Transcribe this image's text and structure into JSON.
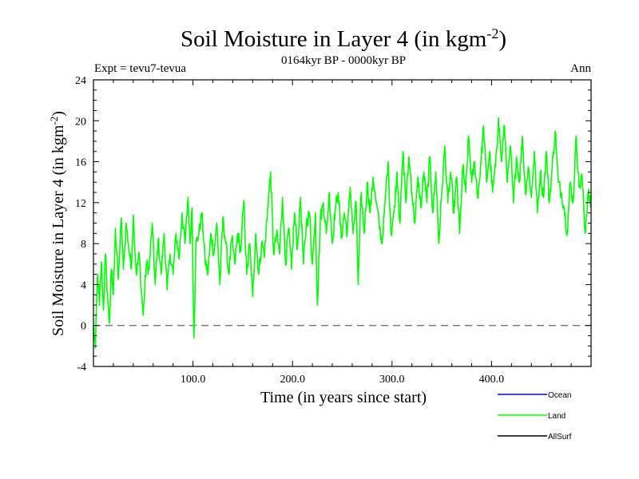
{
  "chart_data": {
    "type": "line",
    "title": "Soil Moisture in Layer 4 (in kgm",
    "title_sup": "-2",
    "title_end": ")",
    "subtitle": "0164kyr BP - 0000kyr BP",
    "expt_label": "Expt = tevu7-tevua",
    "season_label": "Ann",
    "xlabel": "Time (in years since start)",
    "ylabel": "Soil Moisture in Layer 4 (in kgm",
    "ylabel_sup": "-2",
    "ylabel_end": ")",
    "xlim": [
      0,
      500
    ],
    "ylim": [
      -4,
      24
    ],
    "x_ticks": [
      100,
      200,
      300,
      400
    ],
    "x_tick_labels": [
      "100.0",
      "200.0",
      "300.0",
      "400.0"
    ],
    "y_ticks": [
      -4,
      0,
      4,
      8,
      12,
      16,
      20,
      24
    ],
    "y_tick_labels": [
      "-4",
      "0",
      "4",
      "8",
      "12",
      "16",
      "20",
      "24"
    ],
    "zero_line": 0,
    "legend": [
      {
        "name": "Ocean",
        "color": "#0000ff"
      },
      {
        "name": "Land",
        "color": "#00ff00"
      },
      {
        "name": "AllSurf",
        "color": "#000000"
      }
    ],
    "series": [
      {
        "name": "Land",
        "color": "#00ff00",
        "anchors": [
          [
            0,
            0
          ],
          [
            2,
            -2.2
          ],
          [
            4,
            5
          ],
          [
            6,
            2
          ],
          [
            8,
            6.2
          ],
          [
            10,
            1.5
          ],
          [
            12,
            7
          ],
          [
            14,
            3
          ],
          [
            16,
            0.2
          ],
          [
            18,
            5.5
          ],
          [
            20,
            3
          ],
          [
            22,
            9.5
          ],
          [
            25,
            4.5
          ],
          [
            28,
            10.5
          ],
          [
            30,
            5.5
          ],
          [
            33,
            10
          ],
          [
            35,
            8
          ],
          [
            38,
            5.5
          ],
          [
            40,
            10.8
          ],
          [
            43,
            5
          ],
          [
            46,
            7
          ],
          [
            48,
            3.5
          ],
          [
            50,
            1
          ],
          [
            53,
            6
          ],
          [
            56,
            5.5
          ],
          [
            59,
            10
          ],
          [
            62,
            4
          ],
          [
            65,
            8.5
          ],
          [
            68,
            5
          ],
          [
            71,
            9
          ],
          [
            74,
            3.5
          ],
          [
            77,
            7
          ],
          [
            80,
            5
          ],
          [
            83,
            9
          ],
          [
            86,
            6.5
          ],
          [
            89,
            11
          ],
          [
            92,
            8
          ],
          [
            95,
            12.5
          ],
          [
            97,
            8
          ],
          [
            99,
            11.5
          ],
          [
            101,
            -1.2
          ],
          [
            103,
            8
          ],
          [
            106,
            9
          ],
          [
            109,
            11
          ],
          [
            112,
            6.5
          ],
          [
            115,
            5
          ],
          [
            118,
            9
          ],
          [
            121,
            7
          ],
          [
            124,
            10
          ],
          [
            127,
            4
          ],
          [
            130,
            10.5
          ],
          [
            133,
            8
          ],
          [
            136,
            5
          ],
          [
            139,
            8.5
          ],
          [
            142,
            6
          ],
          [
            145,
            9
          ],
          [
            148,
            7.2
          ],
          [
            151,
            12.2
          ],
          [
            154,
            5
          ],
          [
            157,
            8
          ],
          [
            160,
            2.8
          ],
          [
            163,
            9
          ],
          [
            166,
            5
          ],
          [
            169,
            8
          ],
          [
            172,
            7
          ],
          [
            175,
            11.5
          ],
          [
            178,
            15
          ],
          [
            181,
            7
          ],
          [
            184,
            9
          ],
          [
            187,
            7
          ],
          [
            190,
            12.5
          ],
          [
            193,
            6
          ],
          [
            196,
            9.5
          ],
          [
            199,
            5.5
          ],
          [
            202,
            11
          ],
          [
            205,
            7.5
          ],
          [
            208,
            12.5
          ],
          [
            211,
            6
          ],
          [
            214,
            10
          ],
          [
            217,
            11
          ],
          [
            220,
            6
          ],
          [
            223,
            11
          ],
          [
            225,
            2
          ],
          [
            228,
            10.5
          ],
          [
            231,
            12
          ],
          [
            234,
            9
          ],
          [
            237,
            13
          ],
          [
            240,
            8
          ],
          [
            243,
            11.5
          ],
          [
            246,
            13
          ],
          [
            249,
            8.5
          ],
          [
            252,
            11
          ],
          [
            255,
            9
          ],
          [
            258,
            13.5
          ],
          [
            261,
            9
          ],
          [
            264,
            12
          ],
          [
            266,
            4
          ],
          [
            269,
            13
          ],
          [
            272,
            9
          ],
          [
            275,
            14
          ],
          [
            278,
            11
          ],
          [
            281,
            14.5
          ],
          [
            284,
            12
          ],
          [
            287,
            10
          ],
          [
            290,
            8
          ],
          [
            293,
            12
          ],
          [
            296,
            16
          ],
          [
            299,
            9
          ],
          [
            302,
            11
          ],
          [
            305,
            15
          ],
          [
            308,
            10
          ],
          [
            311,
            17
          ],
          [
            314,
            12
          ],
          [
            317,
            16.5
          ],
          [
            320,
            13
          ],
          [
            323,
            10
          ],
          [
            326,
            14.5
          ],
          [
            329,
            11.5
          ],
          [
            332,
            15
          ],
          [
            335,
            12
          ],
          [
            338,
            16.5
          ],
          [
            341,
            11
          ],
          [
            344,
            15
          ],
          [
            347,
            8
          ],
          [
            350,
            13
          ],
          [
            353,
            17.5
          ],
          [
            356,
            12
          ],
          [
            359,
            15
          ],
          [
            362,
            11
          ],
          [
            365,
            14.5
          ],
          [
            368,
            9
          ],
          [
            371,
            15.5
          ],
          [
            374,
            13
          ],
          [
            377,
            18.5
          ],
          [
            380,
            14
          ],
          [
            383,
            16
          ],
          [
            386,
            12.5
          ],
          [
            389,
            15.5
          ],
          [
            392,
            19.5
          ],
          [
            395,
            14
          ],
          [
            398,
            17
          ],
          [
            401,
            13
          ],
          [
            404,
            15.5
          ],
          [
            407,
            20.3
          ],
          [
            410,
            16
          ],
          [
            413,
            19.5
          ],
          [
            416,
            14
          ],
          [
            419,
            17.5
          ],
          [
            422,
            12
          ],
          [
            425,
            16.5
          ],
          [
            428,
            14
          ],
          [
            431,
            18.5
          ],
          [
            434,
            13
          ],
          [
            437,
            15.5
          ],
          [
            440,
            12.5
          ],
          [
            443,
            17
          ],
          [
            446,
            11
          ],
          [
            449,
            15
          ],
          [
            452,
            12.5
          ],
          [
            455,
            17
          ],
          [
            458,
            12
          ],
          [
            461,
            15.5
          ],
          [
            464,
            19
          ],
          [
            467,
            14
          ],
          [
            470,
            13
          ],
          [
            473,
            11.5
          ],
          [
            476,
            9
          ],
          [
            479,
            14
          ],
          [
            482,
            12
          ],
          [
            485,
            18.5
          ],
          [
            488,
            13.5
          ],
          [
            491,
            14.5
          ],
          [
            494,
            9
          ],
          [
            497,
            13
          ],
          [
            500,
            11.5
          ]
        ]
      }
    ]
  }
}
